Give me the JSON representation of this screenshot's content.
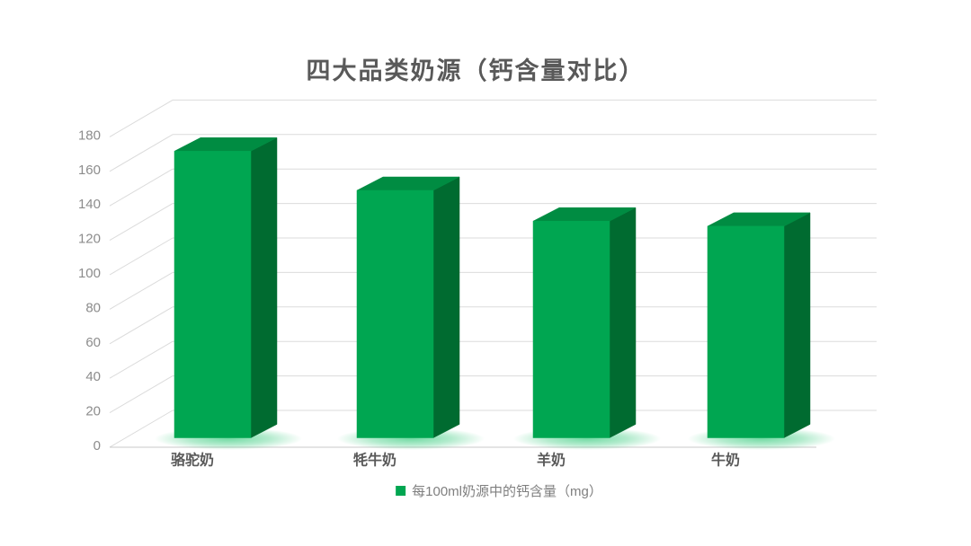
{
  "chart_data": {
    "type": "bar",
    "style": "3d-column",
    "title": "四大品类奶源（钙含量对比）",
    "categories": [
      "骆驼奶",
      "牦牛奶",
      "羊奶",
      "牛奶"
    ],
    "values": [
      168,
      145,
      127,
      124
    ],
    "series_name": "每100ml奶源中的钙含量（mg）",
    "xlabel": "",
    "ylabel": "",
    "ylim": [
      0,
      180
    ],
    "ytick_step": 20,
    "yticks": [
      0,
      20,
      40,
      60,
      80,
      100,
      120,
      140,
      160,
      180
    ],
    "grid": true,
    "legend_position": "bottom"
  },
  "colors": {
    "background": "#FFFFFF",
    "bar_front": "#00A651",
    "bar_top": "#008C42",
    "bar_side": "#006B30",
    "glow": "#00BE5A",
    "title_text": "#595959",
    "category_text": "#595959",
    "axis_text": "#8C8C8C",
    "legend_text": "#7F7F7F",
    "gridline": "#DBDBDB",
    "axis_line": "#C9C9C9"
  }
}
